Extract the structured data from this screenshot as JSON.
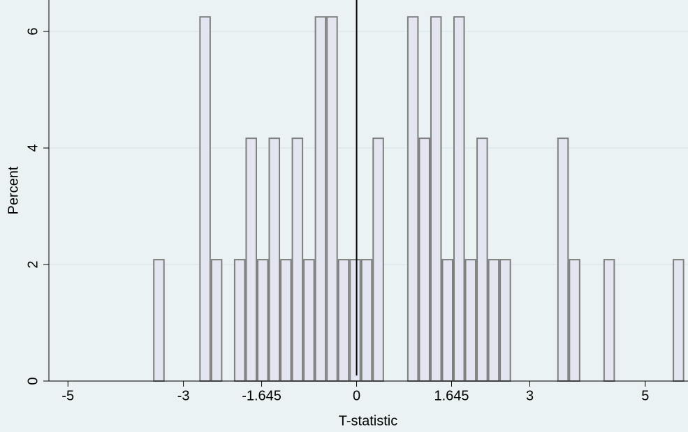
{
  "chart_data": {
    "type": "histogram",
    "x_label": "T-statistic",
    "y_label": "Percent",
    "bins": [
      -3.525,
      -3.325,
      -3.125,
      -2.925,
      -2.725,
      -2.525,
      -2.325,
      -2.125,
      -1.925,
      -1.725,
      -1.525,
      -1.325,
      -1.125,
      -0.925,
      -0.725,
      -0.525,
      -0.325,
      -0.125,
      0.075,
      0.275,
      0.475,
      0.675,
      0.875,
      1.075,
      1.275,
      1.475,
      1.675,
      1.875,
      2.075,
      2.275,
      2.475,
      2.675,
      2.875,
      3.075,
      3.275,
      3.475,
      3.675,
      3.875,
      4.075,
      4.275,
      4.475,
      4.675,
      4.875,
      5.075,
      5.275,
      5.475,
      5.675
    ],
    "values": [
      2.083333,
      0,
      0,
      0,
      6.25,
      2.083333,
      0,
      2.083333,
      4.166667,
      2.083333,
      4.166667,
      2.083333,
      4.166667,
      2.083333,
      6.25,
      6.25,
      2.083333,
      2.083333,
      2.083333,
      4.166667,
      0,
      0,
      6.25,
      4.166667,
      6.25,
      2.083333,
      6.25,
      2.083333,
      4.166667,
      2.083333,
      2.083333,
      0,
      0,
      0,
      0,
      4.166667,
      2.083333,
      0,
      0,
      2.083333,
      0,
      0,
      0,
      0,
      0,
      2.083333
    ],
    "color": "#e3e6f0",
    "edge_color": "#7f7f7f",
    "xlim": [
      -5.33,
      5.74
    ],
    "ylim": [
      0,
      6.54
    ],
    "xticks": [
      -5,
      -3,
      -1.645,
      0,
      1.645,
      3,
      5
    ],
    "yticks": [
      0,
      2,
      4,
      6
    ],
    "xline": 0,
    "grid": true
  }
}
